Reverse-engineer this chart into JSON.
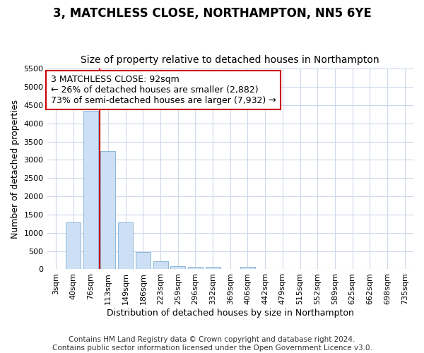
{
  "title": "3, MATCHLESS CLOSE, NORTHAMPTON, NN5 6YE",
  "subtitle": "Size of property relative to detached houses in Northampton",
  "xlabel": "Distribution of detached houses by size in Northampton",
  "ylabel": "Number of detached properties",
  "categories": [
    "3sqm",
    "40sqm",
    "76sqm",
    "113sqm",
    "149sqm",
    "186sqm",
    "223sqm",
    "259sqm",
    "296sqm",
    "332sqm",
    "369sqm",
    "406sqm",
    "442sqm",
    "479sqm",
    "515sqm",
    "552sqm",
    "589sqm",
    "625sqm",
    "662sqm",
    "698sqm",
    "735sqm"
  ],
  "values": [
    0,
    1280,
    4350,
    3250,
    1290,
    480,
    230,
    95,
    75,
    60,
    0,
    60,
    0,
    0,
    0,
    0,
    0,
    0,
    0,
    0,
    0
  ],
  "bar_color": "#ccdff5",
  "bar_edge_color": "#90b8d8",
  "vline_x_index": 2.5,
  "vline_color": "#cc0000",
  "annotation_text": "3 MATCHLESS CLOSE: 92sqm\n← 26% of detached houses are smaller (2,882)\n73% of semi-detached houses are larger (7,932) →",
  "annotation_box_color": "#ffffff",
  "annotation_box_edge_color": "#cc0000",
  "ylim": [
    0,
    5500
  ],
  "yticks": [
    0,
    500,
    1000,
    1500,
    2000,
    2500,
    3000,
    3500,
    4000,
    4500,
    5000,
    5500
  ],
  "footer": "Contains HM Land Registry data © Crown copyright and database right 2024.\nContains public sector information licensed under the Open Government Licence v3.0.",
  "bg_color": "#ffffff",
  "grid_color": "#cdd8ea",
  "title_fontsize": 12,
  "subtitle_fontsize": 10,
  "xlabel_fontsize": 9,
  "ylabel_fontsize": 9,
  "tick_fontsize": 8,
  "footer_fontsize": 7.5,
  "annotation_fontsize": 9
}
